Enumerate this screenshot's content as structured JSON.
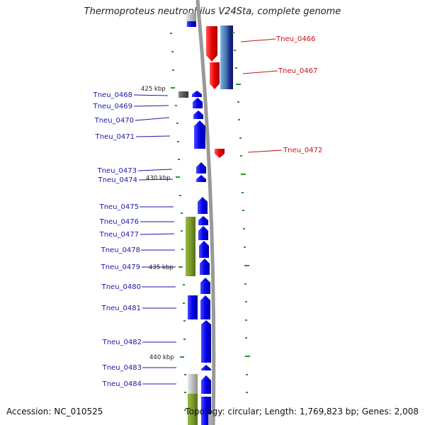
{
  "title": "Thermoproteus neutrophilus V24Sta, complete genome",
  "accession_line": "Accession: NC_010525",
  "topology_line": "Topology: circular; Length: 1,769,823 bp; Genes: 2,008",
  "kbp_markers": [
    "425 kbp",
    "430 kbp",
    "435 kbp",
    "440 kbp"
  ],
  "right_genes": [
    "Tneu_0466",
    "Tneu_0467",
    "Tneu_0472"
  ],
  "left_genes": [
    "Tneu_0468",
    "Tneu_0469",
    "Tneu_0470",
    "Tneu_0471",
    "Tneu_0473",
    "Tneu_0474",
    "Tneu_0475",
    "Tneu_0476",
    "Tneu_0477",
    "Tneu_0478",
    "Tneu_0479",
    "Tneu_0480",
    "Tneu_0481",
    "Tneu_0482",
    "Tneu_0483",
    "Tneu_0484"
  ],
  "colors": {
    "forward_gene": "#1010ee",
    "reverse_gene": "#ee1010",
    "forward_label": "#1a1aa8",
    "reverse_label": "#cc1111",
    "backbone": "#999999",
    "tick": "#229922",
    "olive_feature": "#7a9a2a",
    "navy_feature": "#1a2a88",
    "steel_feature": "#5a8ac0"
  }
}
